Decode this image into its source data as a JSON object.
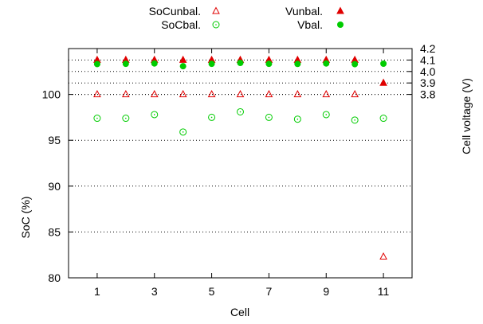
{
  "chart_data": {
    "type": "scatter",
    "xlabel": "Cell",
    "ylabel_left": "SoC (%)",
    "ylabel_right": "Cell voltage (V)",
    "x": [
      1,
      2,
      3,
      4,
      5,
      6,
      7,
      8,
      9,
      10,
      11
    ],
    "xlim": [
      0,
      12
    ],
    "x_ticks": [
      "1",
      "3",
      "5",
      "7",
      "9",
      "11"
    ],
    "x_tick_values": [
      1,
      3,
      5,
      7,
      9,
      11
    ],
    "left_axis": {
      "ylim": [
        80,
        105
      ],
      "ticks": [
        "80",
        "85",
        "90",
        "95",
        "100"
      ],
      "tick_values": [
        80,
        85,
        90,
        95,
        100
      ]
    },
    "right_axis": {
      "ylim": [
        3.6,
        4.2
      ],
      "ticks": [
        "3.8",
        "3.9",
        "4.0",
        "4.1",
        "4.2"
      ],
      "tick_values": [
        3.8,
        3.9,
        4.0,
        4.1,
        4.2
      ]
    },
    "grid": "horizontal dotted",
    "legend_placement": "top",
    "series": [
      {
        "name": "SoCunbal.",
        "axis": "left",
        "marker": "open-triangle",
        "color": "#e00000",
        "values": [
          100,
          100,
          100,
          100,
          100,
          100,
          100,
          100,
          100,
          100,
          82.3
        ]
      },
      {
        "name": "SoCbal.",
        "axis": "left",
        "marker": "open-circle",
        "color": "#00cc00",
        "values": [
          97.4,
          97.4,
          97.8,
          95.9,
          97.5,
          98.1,
          97.5,
          97.3,
          97.8,
          97.2,
          97.4
        ]
      },
      {
        "name": "Vunbal.",
        "axis": "right",
        "marker": "filled-triangle",
        "color": "#e00000",
        "values": [
          4.1,
          4.1,
          4.1,
          4.1,
          4.1,
          4.1,
          4.1,
          4.1,
          4.1,
          4.1,
          3.9
        ]
      },
      {
        "name": "Vbal.",
        "axis": "right",
        "marker": "filled-circle",
        "color": "#00cc00",
        "values": [
          4.065,
          4.067,
          4.07,
          4.046,
          4.067,
          4.075,
          4.067,
          4.066,
          4.07,
          4.064,
          4.068
        ]
      }
    ]
  }
}
